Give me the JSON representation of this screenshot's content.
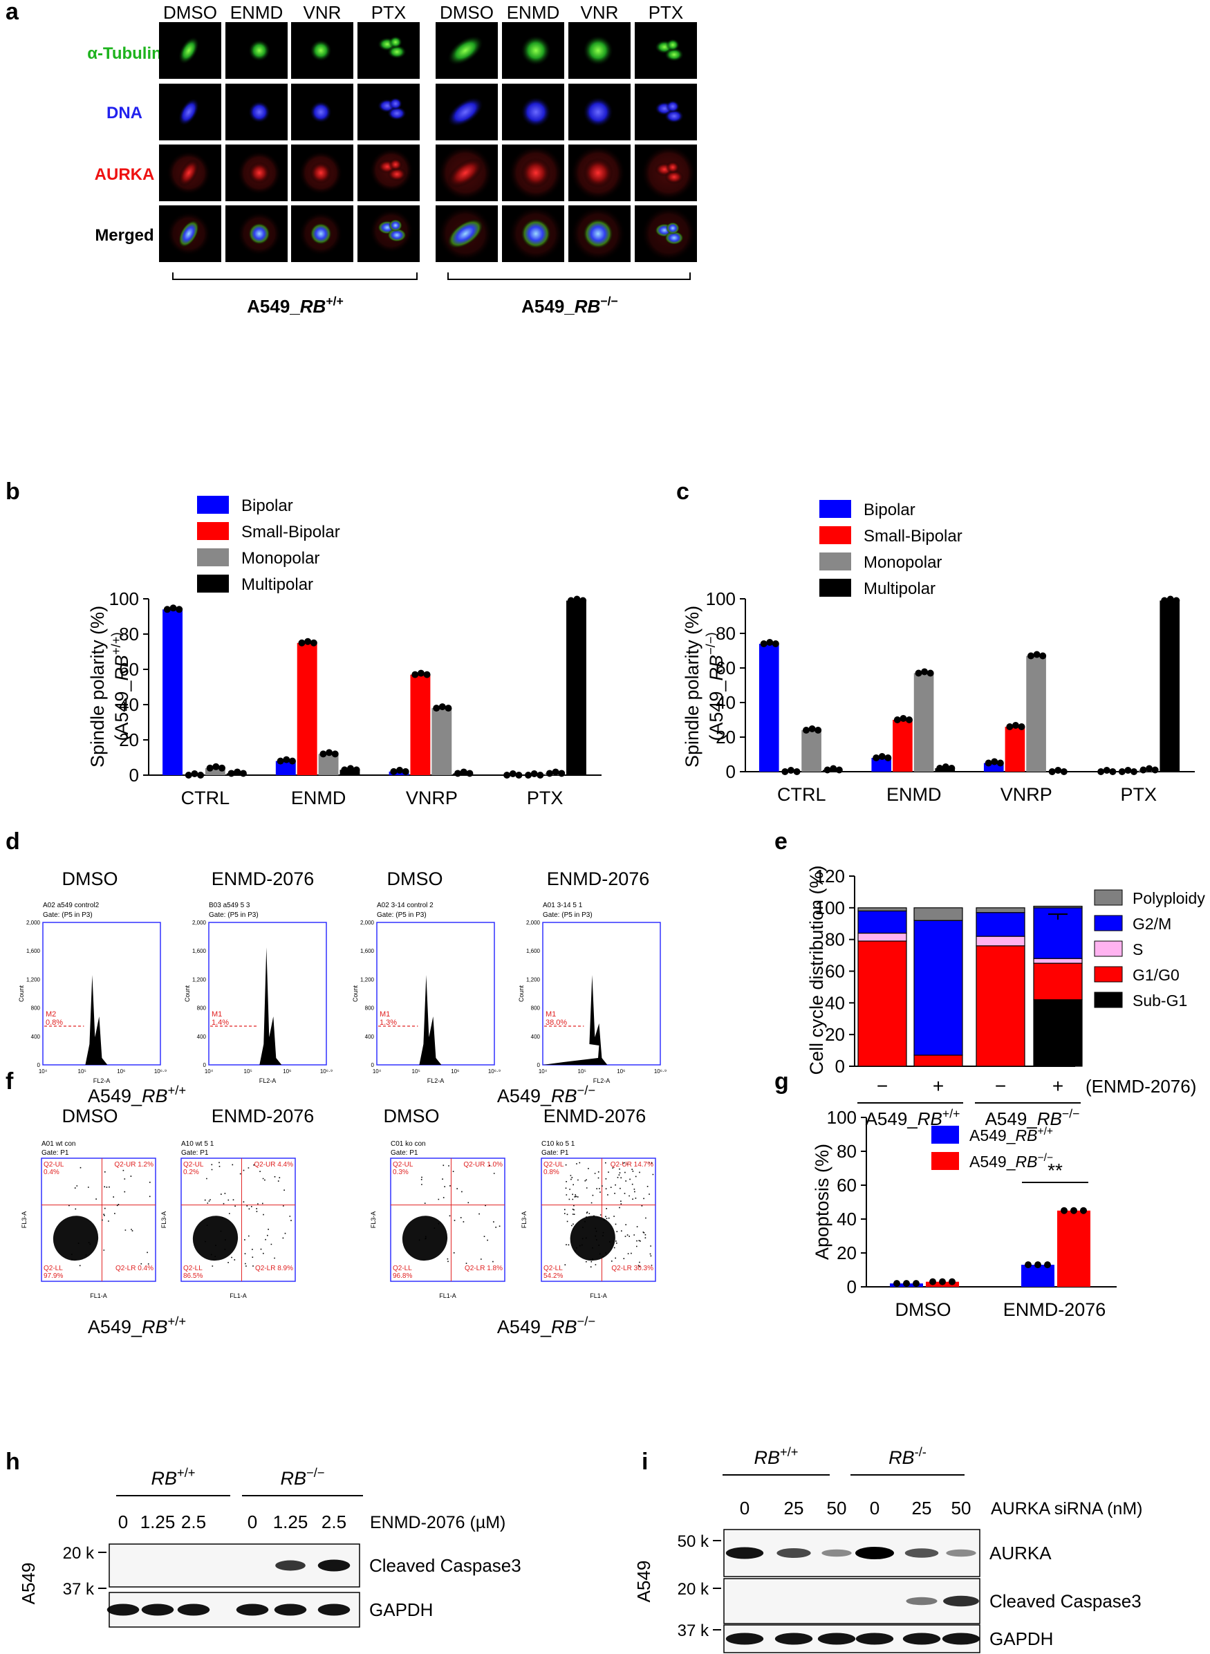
{
  "panel_labels": {
    "a": "a",
    "b": "b",
    "c": "c",
    "d": "d",
    "e": "e",
    "f": "f",
    "g": "g",
    "h": "h",
    "i": "i"
  },
  "panel_a": {
    "columns": [
      "DMSO",
      "ENMD",
      "VNR",
      "PTX",
      "DMSO",
      "ENMD",
      "VNR",
      "PTX"
    ],
    "rows": [
      "α-Tubulin",
      "DNA",
      "AURKA",
      "Merged"
    ],
    "group_left": {
      "prefix": "A549_",
      "gene": "RB",
      "sup": "+/+"
    },
    "group_right": {
      "prefix": "A549_",
      "gene": "RB",
      "sup": "−/−"
    }
  },
  "chart_data": [
    {
      "id": "b",
      "type": "bar",
      "categories": [
        "CTRL",
        "ENMD",
        "VNRP",
        "PTX"
      ],
      "series": [
        {
          "name": "Bipolar",
          "color": "#0000ff",
          "values": [
            94,
            8,
            2,
            0
          ]
        },
        {
          "name": "Small-Bipolar",
          "color": "#ff0000",
          "values": [
            0,
            75,
            57,
            0
          ]
        },
        {
          "name": "Monopolar",
          "color": "#888888",
          "values": [
            4,
            12,
            38,
            1
          ]
        },
        {
          "name": "Multipolar",
          "color": "#000000",
          "values": [
            1,
            3,
            1,
            99
          ]
        }
      ],
      "ylim": [
        0,
        100
      ],
      "yticks": [
        "0",
        "20",
        "40",
        "60",
        "80",
        "100"
      ],
      "ylabel": "Spindle polarity (%)",
      "ylabel2": "(A549_RB+/+)"
    },
    {
      "id": "c",
      "type": "bar",
      "categories": [
        "CTRL",
        "ENMD",
        "VNRP",
        "PTX"
      ],
      "series": [
        {
          "name": "Bipolar",
          "color": "#0000ff",
          "values": [
            74,
            8,
            5,
            0
          ]
        },
        {
          "name": "Small-Bipolar",
          "color": "#ff0000",
          "values": [
            0,
            30,
            26,
            0
          ]
        },
        {
          "name": "Monopolar",
          "color": "#888888",
          "values": [
            24,
            57,
            67,
            1
          ]
        },
        {
          "name": "Multipolar",
          "color": "#000000",
          "values": [
            1,
            2,
            0,
            99
          ]
        }
      ],
      "ylim": [
        0,
        100
      ],
      "yticks": [
        "0",
        "20",
        "40",
        "60",
        "80",
        "100"
      ],
      "ylabel": "Spindle polarity (%)",
      "ylabel2": "(A549_RB−/−)"
    },
    {
      "id": "e",
      "type": "bar",
      "stacked": true,
      "categories": [
        "−",
        "+",
        "−",
        "+"
      ],
      "treatment_label": "(ENMD-2076)",
      "groups": [
        "A549_RB+/+",
        "A549_RB−/−"
      ],
      "series": [
        {
          "name": "Sub-G1",
          "color": "#000000",
          "values": [
            0,
            0,
            0,
            42
          ]
        },
        {
          "name": "G1/G0",
          "color": "#ff0000",
          "values": [
            79,
            7,
            76,
            23
          ]
        },
        {
          "name": "S",
          "color": "#ffb3f0",
          "values": [
            5,
            0,
            6,
            3
          ]
        },
        {
          "name": "G2/M",
          "color": "#0000ff",
          "values": [
            14,
            85,
            15,
            32
          ]
        },
        {
          "name": "Polyploidy",
          "color": "#808080",
          "values": [
            2,
            8,
            3,
            1
          ]
        }
      ],
      "ylim": [
        0,
        120
      ],
      "yticks": [
        "0",
        "20",
        "40",
        "60",
        "80",
        "100",
        "120"
      ],
      "ylabel": "Cell cycle distribution (%)"
    },
    {
      "id": "g",
      "type": "bar",
      "categories": [
        "DMSO",
        "ENMD-2076"
      ],
      "series": [
        {
          "name": "A549_RB+/+",
          "color": "#0000ff",
          "values": [
            2,
            13
          ]
        },
        {
          "name": "A549_RB−/−",
          "color": "#ff0000",
          "values": [
            3,
            45
          ]
        }
      ],
      "ylim": [
        0,
        100
      ],
      "yticks": [
        "0",
        "20",
        "40",
        "60",
        "80",
        "100"
      ],
      "ylabel": "Apoptosis (%)",
      "annotation": "**"
    }
  ],
  "panel_d": {
    "titles": [
      "DMSO",
      "ENMD-2076",
      "DMSO",
      "ENMD-2076"
    ],
    "plots": [
      {
        "line1": "A02 a549 control2",
        "line2": "Gate: (P5 in P3)",
        "marker": "M2",
        "pct": "0.8%"
      },
      {
        "line1": "B03 a549 5 3",
        "line2": "Gate: (P5 in P3)",
        "marker": "M1",
        "pct": "1.4%"
      },
      {
        "line1": "A02 3-14 control 2",
        "line2": "Gate: (P5 in P3)",
        "marker": "M1",
        "pct": "1.3%"
      },
      {
        "line1": "A01 3-14 5 1",
        "line2": "Gate: (P5 in P3)",
        "marker": "M1",
        "pct": "38.0%"
      }
    ],
    "y_label": "Count",
    "x_label": "FL2-A",
    "yticks": [
      "0",
      "400",
      "800",
      "1,200",
      "1,600",
      "2,000"
    ],
    "xticks": [
      "10⁴",
      "10⁵",
      "10⁶",
      "10⁶·⁹"
    ],
    "group_left": "A549_RB+/+",
    "group_right": "A549_RB−/−"
  },
  "panel_f": {
    "titles": [
      "DMSO",
      "ENMD-2076",
      "DMSO",
      "ENMD-2076"
    ],
    "plots": [
      {
        "line1": "A01 wt con",
        "line2": "Gate: P1",
        "ul": "Q2-UL\n0.4%",
        "ur": "Q2-UR 1.2%",
        "ll": "Q2-LL\n97.9%",
        "lr": "Q2-LR 0.4%"
      },
      {
        "line1": "A10 wt 5 1",
        "line2": "Gate: P1",
        "ul": "Q2-UL\n0.2%",
        "ur": "Q2-UR 4.4%",
        "ll": "Q2-LL\n86.5%",
        "lr": "Q2-LR 8.9%"
      },
      {
        "line1": "C01 ko con",
        "line2": "Gate: P1",
        "ul": "Q2-UL\n0.3%",
        "ur": "Q2-UR 1.0%",
        "ll": "Q2-LL\n96.8%",
        "lr": "Q2-LR 1.8%"
      },
      {
        "line1": "C10 ko 5 1",
        "line2": "Gate: P1",
        "ul": "Q2-UL\n0.8%",
        "ur": "Q2-UR 14.7%",
        "ll": "Q2-LL\n54.2%",
        "lr": "Q2-LR 30.3%"
      }
    ],
    "y_label": "FL3-A",
    "x_label": "FL1-A",
    "group_left": "A549_RB+/+",
    "group_right": "A549_RB−/−"
  },
  "panel_h": {
    "groups": [
      "RB+/+",
      "RB−/−"
    ],
    "doses": [
      "0",
      "1.25",
      "2.5",
      "0",
      "1.25",
      "2.5"
    ],
    "dose_label": "ENMD-2076 (µM)",
    "markers": [
      "20 k",
      "37 k"
    ],
    "bands": [
      "Cleaved Caspase3",
      "GAPDH"
    ],
    "cell": "A549"
  },
  "panel_i": {
    "groups": [
      "RB+/+",
      "RB-/-"
    ],
    "doses": [
      "0",
      "25",
      "50",
      "0",
      "25",
      "50"
    ],
    "dose_label": "AURKA siRNA (nM)",
    "markers": [
      "50 k",
      "20 k",
      "37 k"
    ],
    "bands": [
      "AURKA",
      "Cleaved Caspase3",
      "GAPDH"
    ],
    "cell": "A549"
  }
}
